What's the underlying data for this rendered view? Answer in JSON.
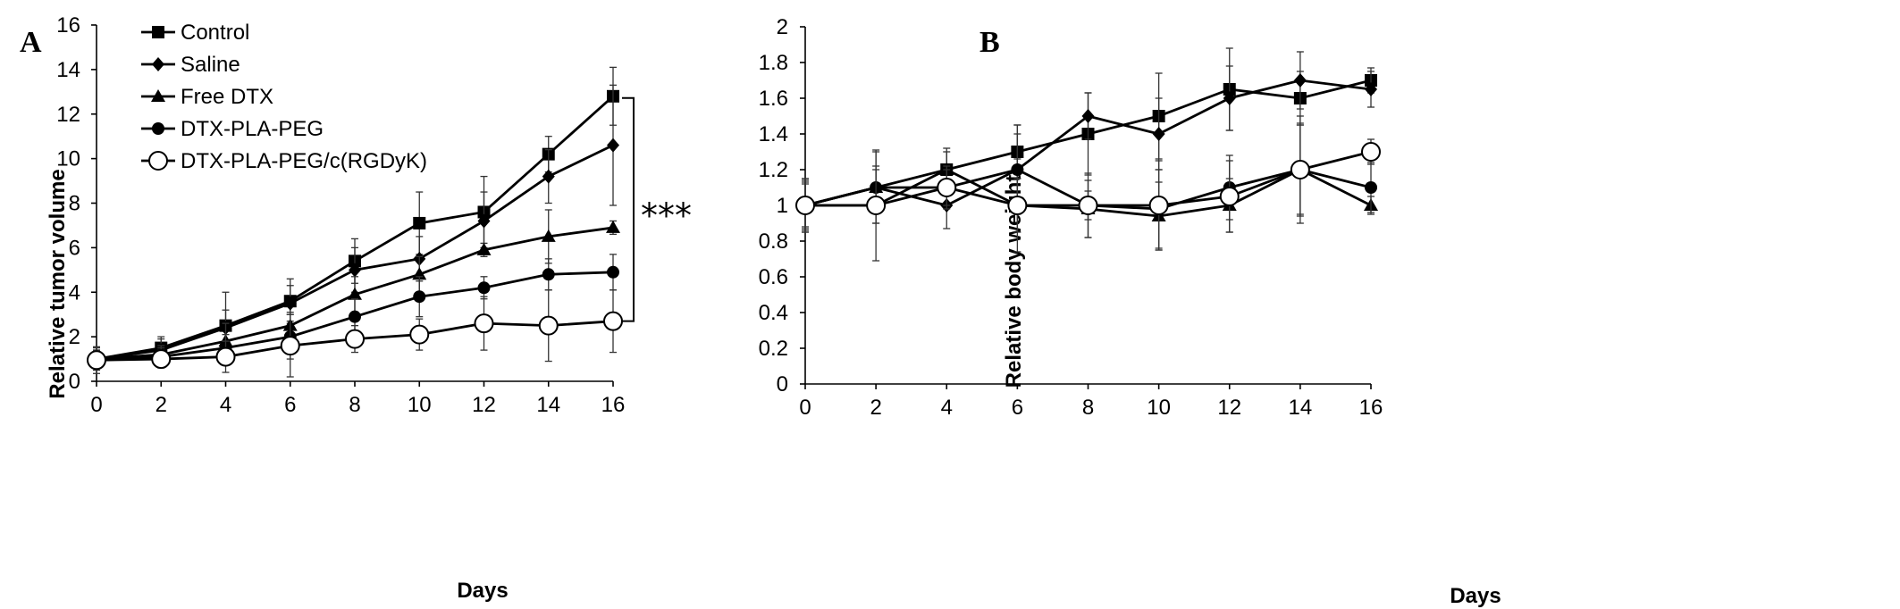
{
  "chart_data": [
    {
      "panel": "A",
      "type": "line",
      "xlabel": "Days",
      "ylabel": "Relative tumor volume",
      "x": [
        0,
        2,
        4,
        6,
        8,
        10,
        12,
        14,
        16
      ],
      "xlim": [
        0,
        16
      ],
      "ylim": [
        0,
        16
      ],
      "xticks": [
        0,
        2,
        4,
        6,
        8,
        10,
        12,
        14,
        16
      ],
      "yticks": [
        0,
        2,
        4,
        6,
        8,
        10,
        12,
        14,
        16
      ],
      "grid": false,
      "legend_position": "top-left",
      "annotation": "***",
      "series": [
        {
          "name": "Control",
          "marker": "square-filled",
          "values": [
            1.0,
            1.5,
            2.5,
            3.6,
            5.4,
            7.1,
            7.6,
            10.2,
            12.8
          ],
          "errors": [
            0.5,
            0.5,
            1.5,
            1.0,
            1.0,
            1.4,
            1.6,
            0.8,
            1.3
          ]
        },
        {
          "name": "Saline",
          "marker": "diamond-filled",
          "values": [
            1.0,
            1.4,
            2.4,
            3.5,
            5.0,
            5.5,
            7.2,
            9.2,
            10.6
          ],
          "errors": [
            0.4,
            0.5,
            0.8,
            0.8,
            1.0,
            1.0,
            1.3,
            1.2,
            2.7
          ]
        },
        {
          "name": "Free DTX",
          "marker": "triangle-filled",
          "values": [
            1.0,
            1.2,
            1.8,
            2.5,
            3.9,
            4.8,
            5.9,
            6.5,
            6.9
          ],
          "errors": [
            0.4,
            0.4,
            0.8,
            0.6,
            0.8,
            0.8,
            0.3,
            1.2,
            0.3
          ]
        },
        {
          "name": "DTX-PLA-PEG",
          "marker": "circle-filled",
          "values": [
            1.0,
            1.1,
            1.5,
            2.0,
            2.9,
            3.8,
            4.2,
            4.8,
            4.9
          ],
          "errors": [
            0.4,
            0.4,
            0.6,
            1.0,
            0.8,
            0.9,
            0.5,
            0.7,
            0.8
          ]
        },
        {
          "name": "DTX-PLA-PEG/c(RGDyK)",
          "marker": "circle-open",
          "values": [
            0.95,
            1.0,
            1.1,
            1.6,
            1.9,
            2.1,
            2.6,
            2.5,
            2.7
          ],
          "errors": [
            0.6,
            0.4,
            0.7,
            1.4,
            0.6,
            0.7,
            1.2,
            1.6,
            1.4
          ]
        }
      ]
    },
    {
      "panel": "B",
      "type": "line",
      "xlabel": "Days",
      "ylabel": "Relative body weight",
      "x": [
        0,
        2,
        4,
        6,
        8,
        10,
        12,
        14,
        16
      ],
      "xlim": [
        0,
        16
      ],
      "ylim": [
        0,
        2
      ],
      "xticks": [
        0,
        2,
        4,
        6,
        8,
        10,
        12,
        14,
        16
      ],
      "yticks": [
        "0",
        "0.2",
        "0.4",
        "0.6",
        "0.8",
        "1",
        "1.2",
        "1.4",
        "1.6",
        "1.8",
        "2"
      ],
      "grid": false,
      "series": [
        {
          "name": "Control",
          "marker": "square-filled",
          "values": [
            1.0,
            1.0,
            1.2,
            1.3,
            1.4,
            1.5,
            1.65,
            1.6,
            1.7
          ],
          "errors": [
            0.15,
            0.1,
            0.12,
            0.15,
            0.23,
            0.24,
            0.23,
            0.15,
            0.07
          ]
        },
        {
          "name": "Saline",
          "marker": "diamond-filled",
          "values": [
            1.0,
            1.1,
            1.0,
            1.2,
            1.5,
            1.4,
            1.6,
            1.7,
            1.65
          ],
          "errors": [
            0.13,
            0.12,
            0.13,
            0.2,
            0.13,
            0.2,
            0.18,
            0.16,
            0.1
          ]
        },
        {
          "name": "Free DTX",
          "marker": "triangle-filled",
          "values": [
            1.0,
            1.1,
            1.2,
            1.0,
            0.98,
            0.94,
            1.0,
            1.2,
            1.0
          ],
          "errors": [
            0.15,
            0.1,
            0.1,
            0.26,
            0.16,
            0.19,
            0.15,
            0.26,
            0.05
          ]
        },
        {
          "name": "DTX-PLA-PEG",
          "marker": "circle-filled",
          "values": [
            1.0,
            1.1,
            1.1,
            1.2,
            1.0,
            0.98,
            1.1,
            1.2,
            1.1
          ],
          "errors": [
            0.14,
            0.2,
            0.12,
            0.25,
            0.18,
            0.22,
            0.18,
            0.25,
            0.14
          ]
        },
        {
          "name": "DTX-PLA-PEG/c(RGDyK)",
          "marker": "circle-open",
          "values": [
            1.0,
            1.0,
            1.1,
            1.0,
            1.0,
            1.0,
            1.05,
            1.2,
            1.3
          ],
          "errors": [
            0.12,
            0.31,
            0.1,
            0.15,
            0.08,
            0.25,
            0.2,
            0.3,
            0.07
          ]
        }
      ]
    }
  ]
}
